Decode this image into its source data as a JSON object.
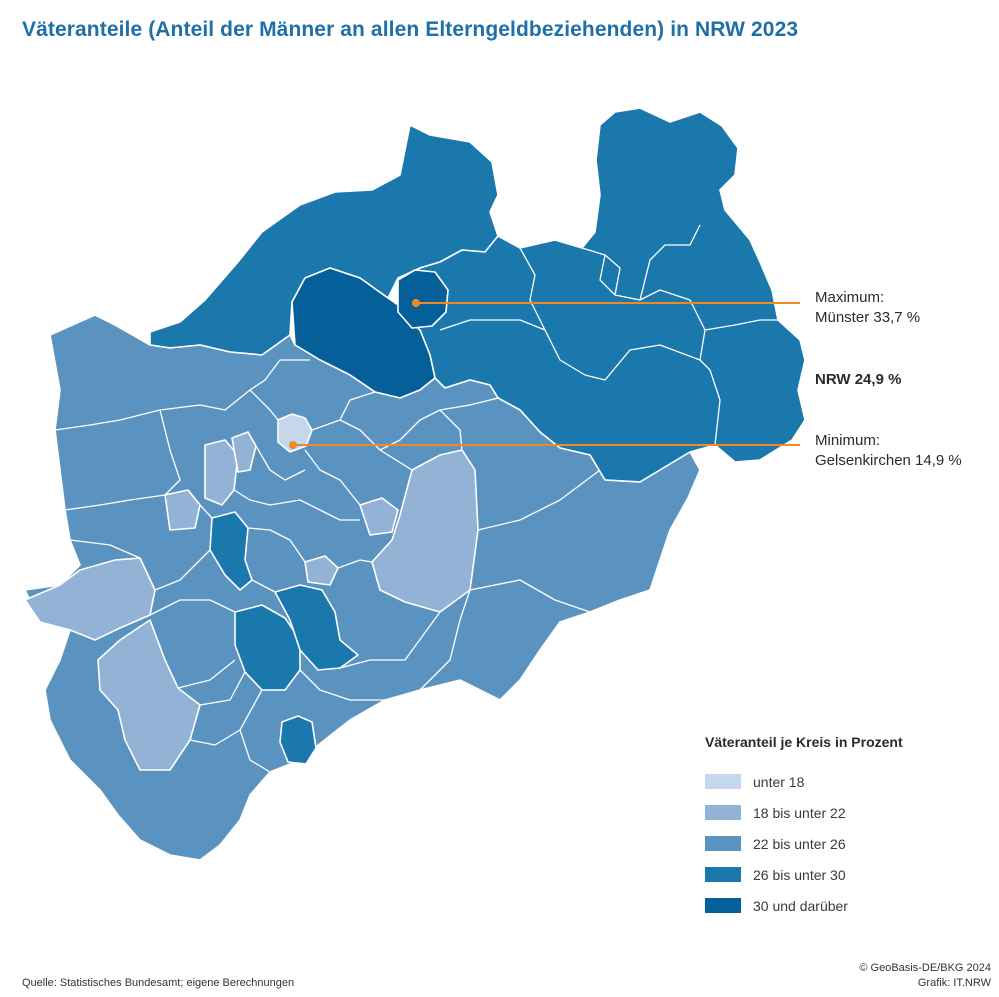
{
  "title": "Väteranteile (Anteil der Männer an allen Elterngeldbeziehenden) in NRW 2023",
  "colors": {
    "title": "#1f6fa8",
    "unter_18": "#c5d7ea",
    "18_bis_22": "#92b3d5",
    "22_bis_26": "#5b93c0",
    "26_bis_30": "#1a78ad",
    "30_und_darueber": "#055f98",
    "annotation_line": "#f08a24",
    "border": "#ffffff"
  },
  "annotations": {
    "maximum": {
      "label": "Maximum:",
      "value": "Münster 33,7 %"
    },
    "nrw": "NRW 24,9 %",
    "minimum": {
      "label": "Minimum:",
      "value": "Gelsenkirchen 14,9 %"
    }
  },
  "legend": {
    "title": "Väteranteil je Kreis in Prozent",
    "items": [
      {
        "label": "unter 18",
        "color": "#c5d7ea"
      },
      {
        "label": "18 bis unter 22",
        "color": "#92b3d5"
      },
      {
        "label": "22 bis unter 26",
        "color": "#5b93c0"
      },
      {
        "label": "26 bis unter 30",
        "color": "#1a78ad"
      },
      {
        "label": "30 und darüber",
        "color": "#055f98"
      }
    ]
  },
  "footer": {
    "source": "Quelle: Statistisches Bundesamt; eigene Berechnungen",
    "copyright": "© GeoBasis-DE/BKG 2024",
    "graphic": "Grafik: IT.NRW"
  }
}
